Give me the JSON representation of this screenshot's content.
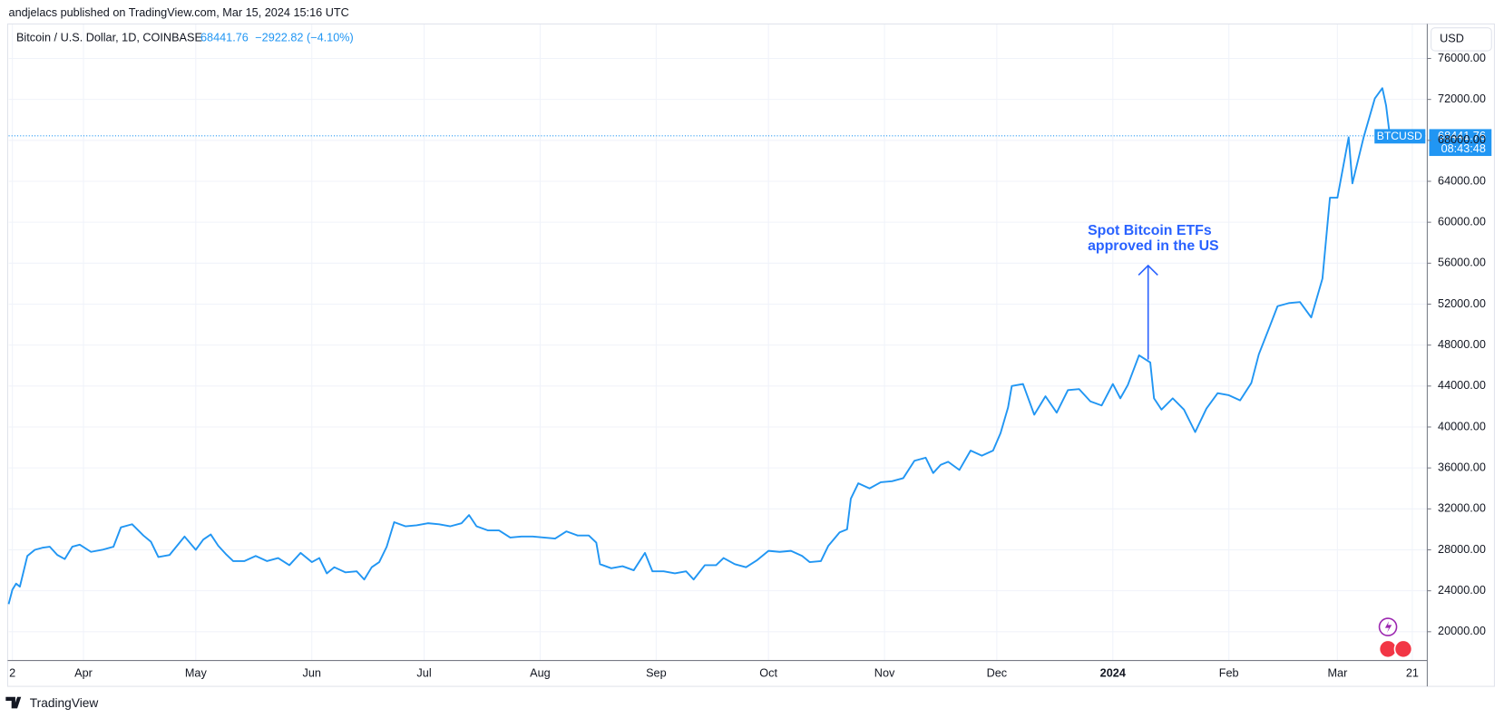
{
  "header": "andjelacs published on TradingView.com, Mar 15, 2024 15:16 UTC",
  "footer": "TradingView",
  "chart_data": {
    "type": "line",
    "title": "Bitcoin / U.S. Dollar, 1D, COINBASE",
    "change": "−2922.82 (−4.10%)",
    "currency": "USD",
    "countdown": "08:43:48",
    "annotation": [
      "Spot Bitcoin ETFs",
      "approved in the US"
    ],
    "grid": true,
    "x": [
      "2023-03-12",
      "2023-03-13",
      "2023-03-14",
      "2023-03-15",
      "2023-03-17",
      "2023-03-19",
      "2023-03-21",
      "2023-03-23",
      "2023-03-25",
      "2023-03-27",
      "2023-03-29",
      "2023-03-31",
      "2023-04-03",
      "2023-04-06",
      "2023-04-09",
      "2023-04-11",
      "2023-04-14",
      "2023-04-17",
      "2023-04-19",
      "2023-04-21",
      "2023-04-24",
      "2023-04-26",
      "2023-04-28",
      "2023-05-01",
      "2023-05-03",
      "2023-05-05",
      "2023-05-07",
      "2023-05-09",
      "2023-05-11",
      "2023-05-14",
      "2023-05-17",
      "2023-05-20",
      "2023-05-23",
      "2023-05-26",
      "2023-05-29",
      "2023-06-01",
      "2023-06-03",
      "2023-06-05",
      "2023-06-07",
      "2023-06-10",
      "2023-06-13",
      "2023-06-15",
      "2023-06-17",
      "2023-06-19",
      "2023-06-21",
      "2023-06-23",
      "2023-06-26",
      "2023-06-29",
      "2023-07-02",
      "2023-07-05",
      "2023-07-08",
      "2023-07-11",
      "2023-07-13",
      "2023-07-15",
      "2023-07-18",
      "2023-07-21",
      "2023-07-24",
      "2023-07-27",
      "2023-07-30",
      "2023-08-02",
      "2023-08-05",
      "2023-08-08",
      "2023-08-11",
      "2023-08-14",
      "2023-08-16",
      "2023-08-17",
      "2023-08-20",
      "2023-08-23",
      "2023-08-26",
      "2023-08-29",
      "2023-08-31",
      "2023-09-03",
      "2023-09-06",
      "2023-09-09",
      "2023-09-11",
      "2023-09-14",
      "2023-09-17",
      "2023-09-19",
      "2023-09-22",
      "2023-09-25",
      "2023-09-28",
      "2023-10-01",
      "2023-10-04",
      "2023-10-07",
      "2023-10-10",
      "2023-10-12",
      "2023-10-15",
      "2023-10-17",
      "2023-10-20",
      "2023-10-22",
      "2023-10-23",
      "2023-10-25",
      "2023-10-28",
      "2023-10-31",
      "2023-11-03",
      "2023-11-06",
      "2023-11-09",
      "2023-11-12",
      "2023-11-14",
      "2023-11-16",
      "2023-11-18",
      "2023-11-21",
      "2023-11-24",
      "2023-11-27",
      "2023-11-30",
      "2023-12-02",
      "2023-12-04",
      "2023-12-05",
      "2023-12-08",
      "2023-12-11",
      "2023-12-14",
      "2023-12-17",
      "2023-12-20",
      "2023-12-23",
      "2023-12-26",
      "2023-12-29",
      "2024-01-01",
      "2024-01-03",
      "2024-01-05",
      "2024-01-08",
      "2024-01-11",
      "2024-01-12",
      "2024-01-14",
      "2024-01-17",
      "2024-01-20",
      "2024-01-23",
      "2024-01-26",
      "2024-01-29",
      "2024-02-01",
      "2024-02-04",
      "2024-02-07",
      "2024-02-09",
      "2024-02-12",
      "2024-02-14",
      "2024-02-17",
      "2024-02-20",
      "2024-02-23",
      "2024-02-26",
      "2024-02-28",
      "2024-03-01",
      "2024-03-04",
      "2024-03-05",
      "2024-03-08",
      "2024-03-11",
      "2024-03-13",
      "2024-03-14",
      "2024-03-15"
    ],
    "series": [
      {
        "name": "BTCUSD",
        "color": "#2196f3",
        "values": [
          22700,
          24100,
          24700,
          24400,
          27400,
          28000,
          28200,
          28300,
          27500,
          27100,
          28300,
          28500,
          27800,
          28000,
          28300,
          30200,
          30500,
          29400,
          28800,
          27300,
          27500,
          28400,
          29300,
          28000,
          29000,
          29500,
          28400,
          27600,
          26900,
          26900,
          27400,
          26900,
          27200,
          26500,
          27700,
          26800,
          27200,
          25700,
          26300,
          25800,
          25900,
          25100,
          26300,
          26800,
          28300,
          30700,
          30300,
          30400,
          30600,
          30500,
          30300,
          30600,
          31400,
          30300,
          29900,
          29900,
          29200,
          29300,
          29300,
          29200,
          29100,
          29800,
          29400,
          29400,
          28700,
          26600,
          26200,
          26400,
          26000,
          27700,
          25900,
          25900,
          25700,
          25900,
          25100,
          26500,
          26500,
          27200,
          26600,
          26300,
          27000,
          27900,
          27800,
          27900,
          27400,
          26800,
          26900,
          28400,
          29700,
          30000,
          33000,
          34500,
          34000,
          34600,
          34700,
          35000,
          36700,
          37000,
          35500,
          36300,
          36600,
          35800,
          37700,
          37200,
          37700,
          39400,
          41900,
          44000,
          44200,
          41200,
          43000,
          41400,
          43600,
          43700,
          42500,
          42100,
          44200,
          42800,
          44100,
          47000,
          46300,
          42800,
          41700,
          42800,
          41700,
          39500,
          41800,
          43300,
          43100,
          42600,
          44300,
          47100,
          49900,
          51800,
          52100,
          52200,
          50700,
          54500,
          62400,
          62400,
          68300,
          63800,
          68300,
          72100,
          73100,
          71400,
          68441.76
        ]
      }
    ],
    "xlim": [
      "2023-03-12",
      "2024-03-25"
    ],
    "xticks": [
      {
        "value": "2023-03-13",
        "label": "2"
      },
      {
        "value": "2023-04-01",
        "label": "Apr"
      },
      {
        "value": "2023-05-01",
        "label": "May"
      },
      {
        "value": "2023-06-01",
        "label": "Jun"
      },
      {
        "value": "2023-07-01",
        "label": "Jul"
      },
      {
        "value": "2023-08-01",
        "label": "Aug"
      },
      {
        "value": "2023-09-01",
        "label": "Sep"
      },
      {
        "value": "2023-10-01",
        "label": "Oct"
      },
      {
        "value": "2023-11-01",
        "label": "Nov"
      },
      {
        "value": "2023-12-01",
        "label": "Dec"
      },
      {
        "value": "2024-01-01",
        "label": "2024"
      },
      {
        "value": "2024-02-01",
        "label": "Feb"
      },
      {
        "value": "2024-03-01",
        "label": "Mar"
      },
      {
        "value": "2024-03-21",
        "label": "21"
      }
    ],
    "ylim": [
      17190,
      79370
    ],
    "yticks": [
      {
        "value": 20000,
        "label": "20000.00"
      },
      {
        "value": 24000,
        "label": "24000.00"
      },
      {
        "value": 28000,
        "label": "28000.00"
      },
      {
        "value": 32000,
        "label": "32000.00"
      },
      {
        "value": 36000,
        "label": "36000.00"
      },
      {
        "value": 40000,
        "label": "40000.00"
      },
      {
        "value": 44000,
        "label": "44000.00"
      },
      {
        "value": 48000,
        "label": "48000.00"
      },
      {
        "value": 52000,
        "label": "52000.00"
      },
      {
        "value": 56000,
        "label": "56000.00"
      },
      {
        "value": 60000,
        "label": "60000.00"
      },
      {
        "value": 64000,
        "label": "64000.00"
      },
      {
        "value": 68000,
        "label": "68000.00"
      },
      {
        "value": 72000,
        "label": "72000.00"
      },
      {
        "value": 76000,
        "label": "76000.00"
      }
    ]
  }
}
